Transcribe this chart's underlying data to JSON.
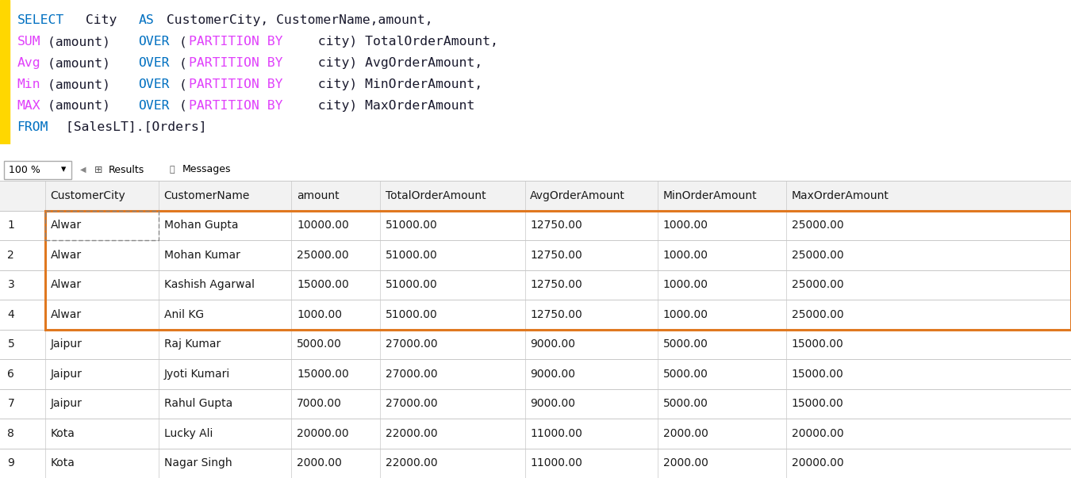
{
  "background_color": "#ffffff",
  "sql_editor_bg": "#ffffff",
  "sql_lines": [
    [
      {
        "text": "SELECT",
        "color": "#0070c1"
      },
      {
        "text": " City ",
        "color": "#1a1a2e"
      },
      {
        "text": "AS",
        "color": "#0070c1"
      },
      {
        "text": " CustomerCity, CustomerName,amount,",
        "color": "#1a1a2e"
      }
    ],
    [
      {
        "text": "SUM",
        "color": "#e040fb"
      },
      {
        "text": "(amount) ",
        "color": "#1a1a2e"
      },
      {
        "text": "OVER",
        "color": "#0070c1"
      },
      {
        "text": "(",
        "color": "#1a1a2e"
      },
      {
        "text": "PARTITION BY",
        "color": "#e040fb"
      },
      {
        "text": " city) TotalOrderAmount,",
        "color": "#1a1a2e"
      }
    ],
    [
      {
        "text": "Avg",
        "color": "#e040fb"
      },
      {
        "text": "(amount) ",
        "color": "#1a1a2e"
      },
      {
        "text": "OVER",
        "color": "#0070c1"
      },
      {
        "text": "(",
        "color": "#1a1a2e"
      },
      {
        "text": "PARTITION BY",
        "color": "#e040fb"
      },
      {
        "text": " city) AvgOrderAmount,",
        "color": "#1a1a2e"
      }
    ],
    [
      {
        "text": "Min",
        "color": "#e040fb"
      },
      {
        "text": "(amount) ",
        "color": "#1a1a2e"
      },
      {
        "text": "OVER",
        "color": "#0070c1"
      },
      {
        "text": "(",
        "color": "#1a1a2e"
      },
      {
        "text": "PARTITION BY",
        "color": "#e040fb"
      },
      {
        "text": " city) MinOrderAmount,",
        "color": "#1a1a2e"
      }
    ],
    [
      {
        "text": "MAX",
        "color": "#e040fb"
      },
      {
        "text": "(amount) ",
        "color": "#1a1a2e"
      },
      {
        "text": "OVER",
        "color": "#0070c1"
      },
      {
        "text": "(",
        "color": "#1a1a2e"
      },
      {
        "text": "PARTITION BY",
        "color": "#e040fb"
      },
      {
        "text": " city) MaxOrderAmount",
        "color": "#1a1a2e"
      }
    ],
    [
      {
        "text": "FROM",
        "color": "#0070c1"
      },
      {
        "text": " [SalesLT].[Orders]",
        "color": "#1a1a2e"
      }
    ]
  ],
  "left_border_color": "#ffd700",
  "toolbar_bg": "#e8e8e8",
  "zoom_text": "100 %",
  "tab_results": "Results",
  "tab_messages": "Messages",
  "highlight_color": "#e07820",
  "table_header_color": "#1a1a1a",
  "table_row_color": "#1a1a1a",
  "table_bg": "#ffffff",
  "grid_color": "#c8c8c8",
  "row_number_color": "#1a1a1a",
  "columns": [
    "CustomerCity",
    "CustomerName",
    "amount",
    "TotalOrderAmount",
    "AvgOrderAmount",
    "MinOrderAmount",
    "MaxOrderAmount"
  ],
  "rows": [
    [
      1,
      "Alwar",
      "Mohan Gupta",
      "10000.00",
      "51000.00",
      "12750.00",
      "1000.00",
      "25000.00"
    ],
    [
      2,
      "Alwar",
      "Mohan Kumar",
      "25000.00",
      "51000.00",
      "12750.00",
      "1000.00",
      "25000.00"
    ],
    [
      3,
      "Alwar",
      "Kashish Agarwal",
      "15000.00",
      "51000.00",
      "12750.00",
      "1000.00",
      "25000.00"
    ],
    [
      4,
      "Alwar",
      "Anil KG",
      "1000.00",
      "51000.00",
      "12750.00",
      "1000.00",
      "25000.00"
    ],
    [
      5,
      "Jaipur",
      "Raj Kumar",
      "5000.00",
      "27000.00",
      "9000.00",
      "5000.00",
      "15000.00"
    ],
    [
      6,
      "Jaipur",
      "Jyoti Kumari",
      "15000.00",
      "27000.00",
      "9000.00",
      "5000.00",
      "15000.00"
    ],
    [
      7,
      "Jaipur",
      "Rahul Gupta",
      "7000.00",
      "27000.00",
      "9000.00",
      "5000.00",
      "15000.00"
    ],
    [
      8,
      "Kota",
      "Lucky Ali",
      "20000.00",
      "22000.00",
      "11000.00",
      "2000.00",
      "20000.00"
    ],
    [
      9,
      "Kota",
      "Nagar Singh",
      "2000.00",
      "22000.00",
      "11000.00",
      "2000.00",
      "20000.00"
    ]
  ]
}
